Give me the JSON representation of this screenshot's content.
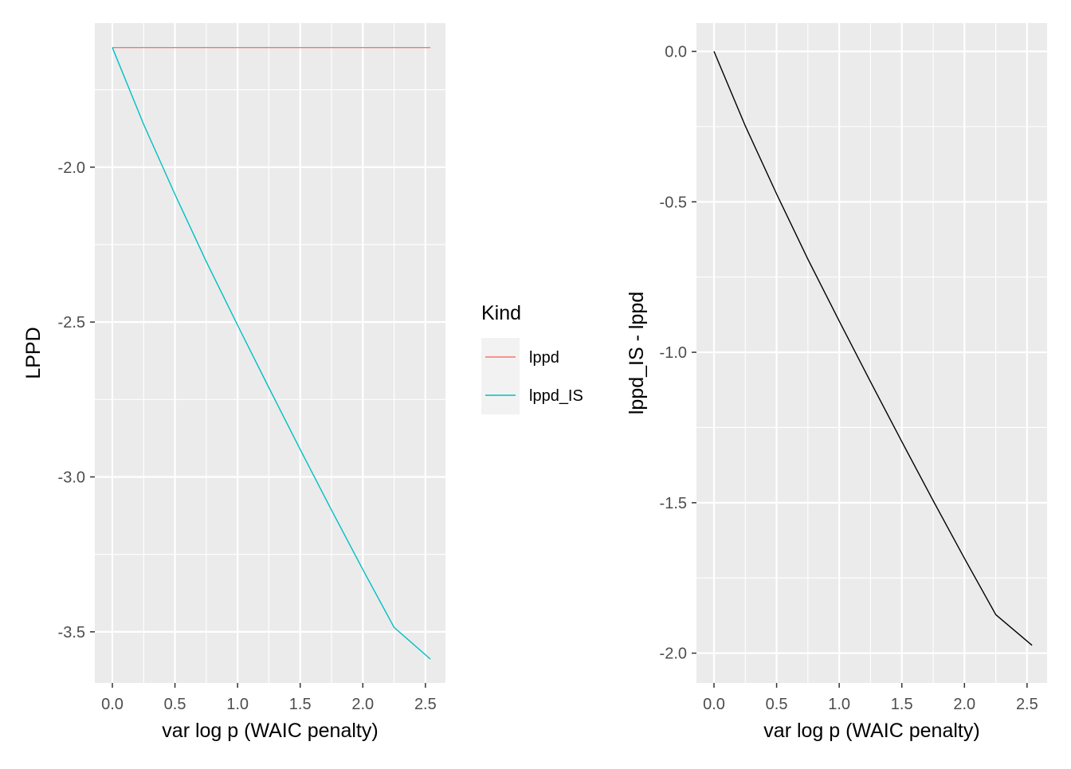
{
  "chart_data": [
    {
      "type": "line",
      "xlabel": "var log p (WAIC penalty)",
      "ylabel": "LPPD",
      "xlim": [
        -0.14,
        2.66
      ],
      "ylim": [
        -3.665,
        -1.535
      ],
      "xticks": [
        0.0,
        0.5,
        1.0,
        1.5,
        2.0,
        2.5
      ],
      "xtick_labels": [
        "0.0",
        "0.5",
        "1.0",
        "1.5",
        "2.0",
        "2.5"
      ],
      "yticks": [
        -2.0,
        -2.5,
        -3.0,
        -3.5
      ],
      "ytick_labels": [
        "-2.0",
        "-2.5",
        "-3.0",
        "-3.5"
      ],
      "grid": true,
      "legend": {
        "title": "Kind",
        "placement": "right",
        "entries": [
          {
            "label": "lppd",
            "color": "#F8766D"
          },
          {
            "label": "lppd_IS",
            "color": "#00BFC4"
          }
        ]
      },
      "series": [
        {
          "name": "lppd",
          "color": "#F8766D",
          "x": [
            0.0,
            2.54
          ],
          "y": [
            -1.614,
            -1.614
          ]
        },
        {
          "name": "lppd_IS",
          "color": "#00BFC4",
          "x": [
            0.0,
            0.25,
            0.5,
            0.75,
            1.0,
            1.25,
            1.5,
            1.75,
            2.0,
            2.25,
            2.54
          ],
          "y": [
            -1.614,
            -1.862,
            -2.088,
            -2.305,
            -2.51,
            -2.712,
            -2.911,
            -3.107,
            -3.299,
            -3.486,
            -3.588
          ]
        }
      ]
    },
    {
      "type": "line",
      "xlabel": "var log p (WAIC penalty)",
      "ylabel": "lppd_IS - lppd",
      "xlim": [
        -0.14,
        2.66
      ],
      "ylim": [
        -2.099,
        0.094
      ],
      "xticks": [
        0.0,
        0.5,
        1.0,
        1.5,
        2.0,
        2.5
      ],
      "xtick_labels": [
        "0.0",
        "0.5",
        "1.0",
        "1.5",
        "2.0",
        "2.5"
      ],
      "yticks": [
        0.0,
        -0.5,
        -1.0,
        -1.5,
        -2.0
      ],
      "ytick_labels": [
        "0.0",
        "-0.5",
        "-1.0",
        "-1.5",
        "-2.0"
      ],
      "grid": true,
      "series": [
        {
          "color": "#000000",
          "x": [
            0.0,
            0.25,
            0.5,
            0.75,
            1.0,
            1.25,
            1.5,
            1.75,
            2.0,
            2.25,
            2.54
          ],
          "y": [
            0.0,
            -0.248,
            -0.474,
            -0.691,
            -0.896,
            -1.098,
            -1.297,
            -1.493,
            -1.685,
            -1.872,
            -1.974
          ]
        }
      ]
    }
  ]
}
